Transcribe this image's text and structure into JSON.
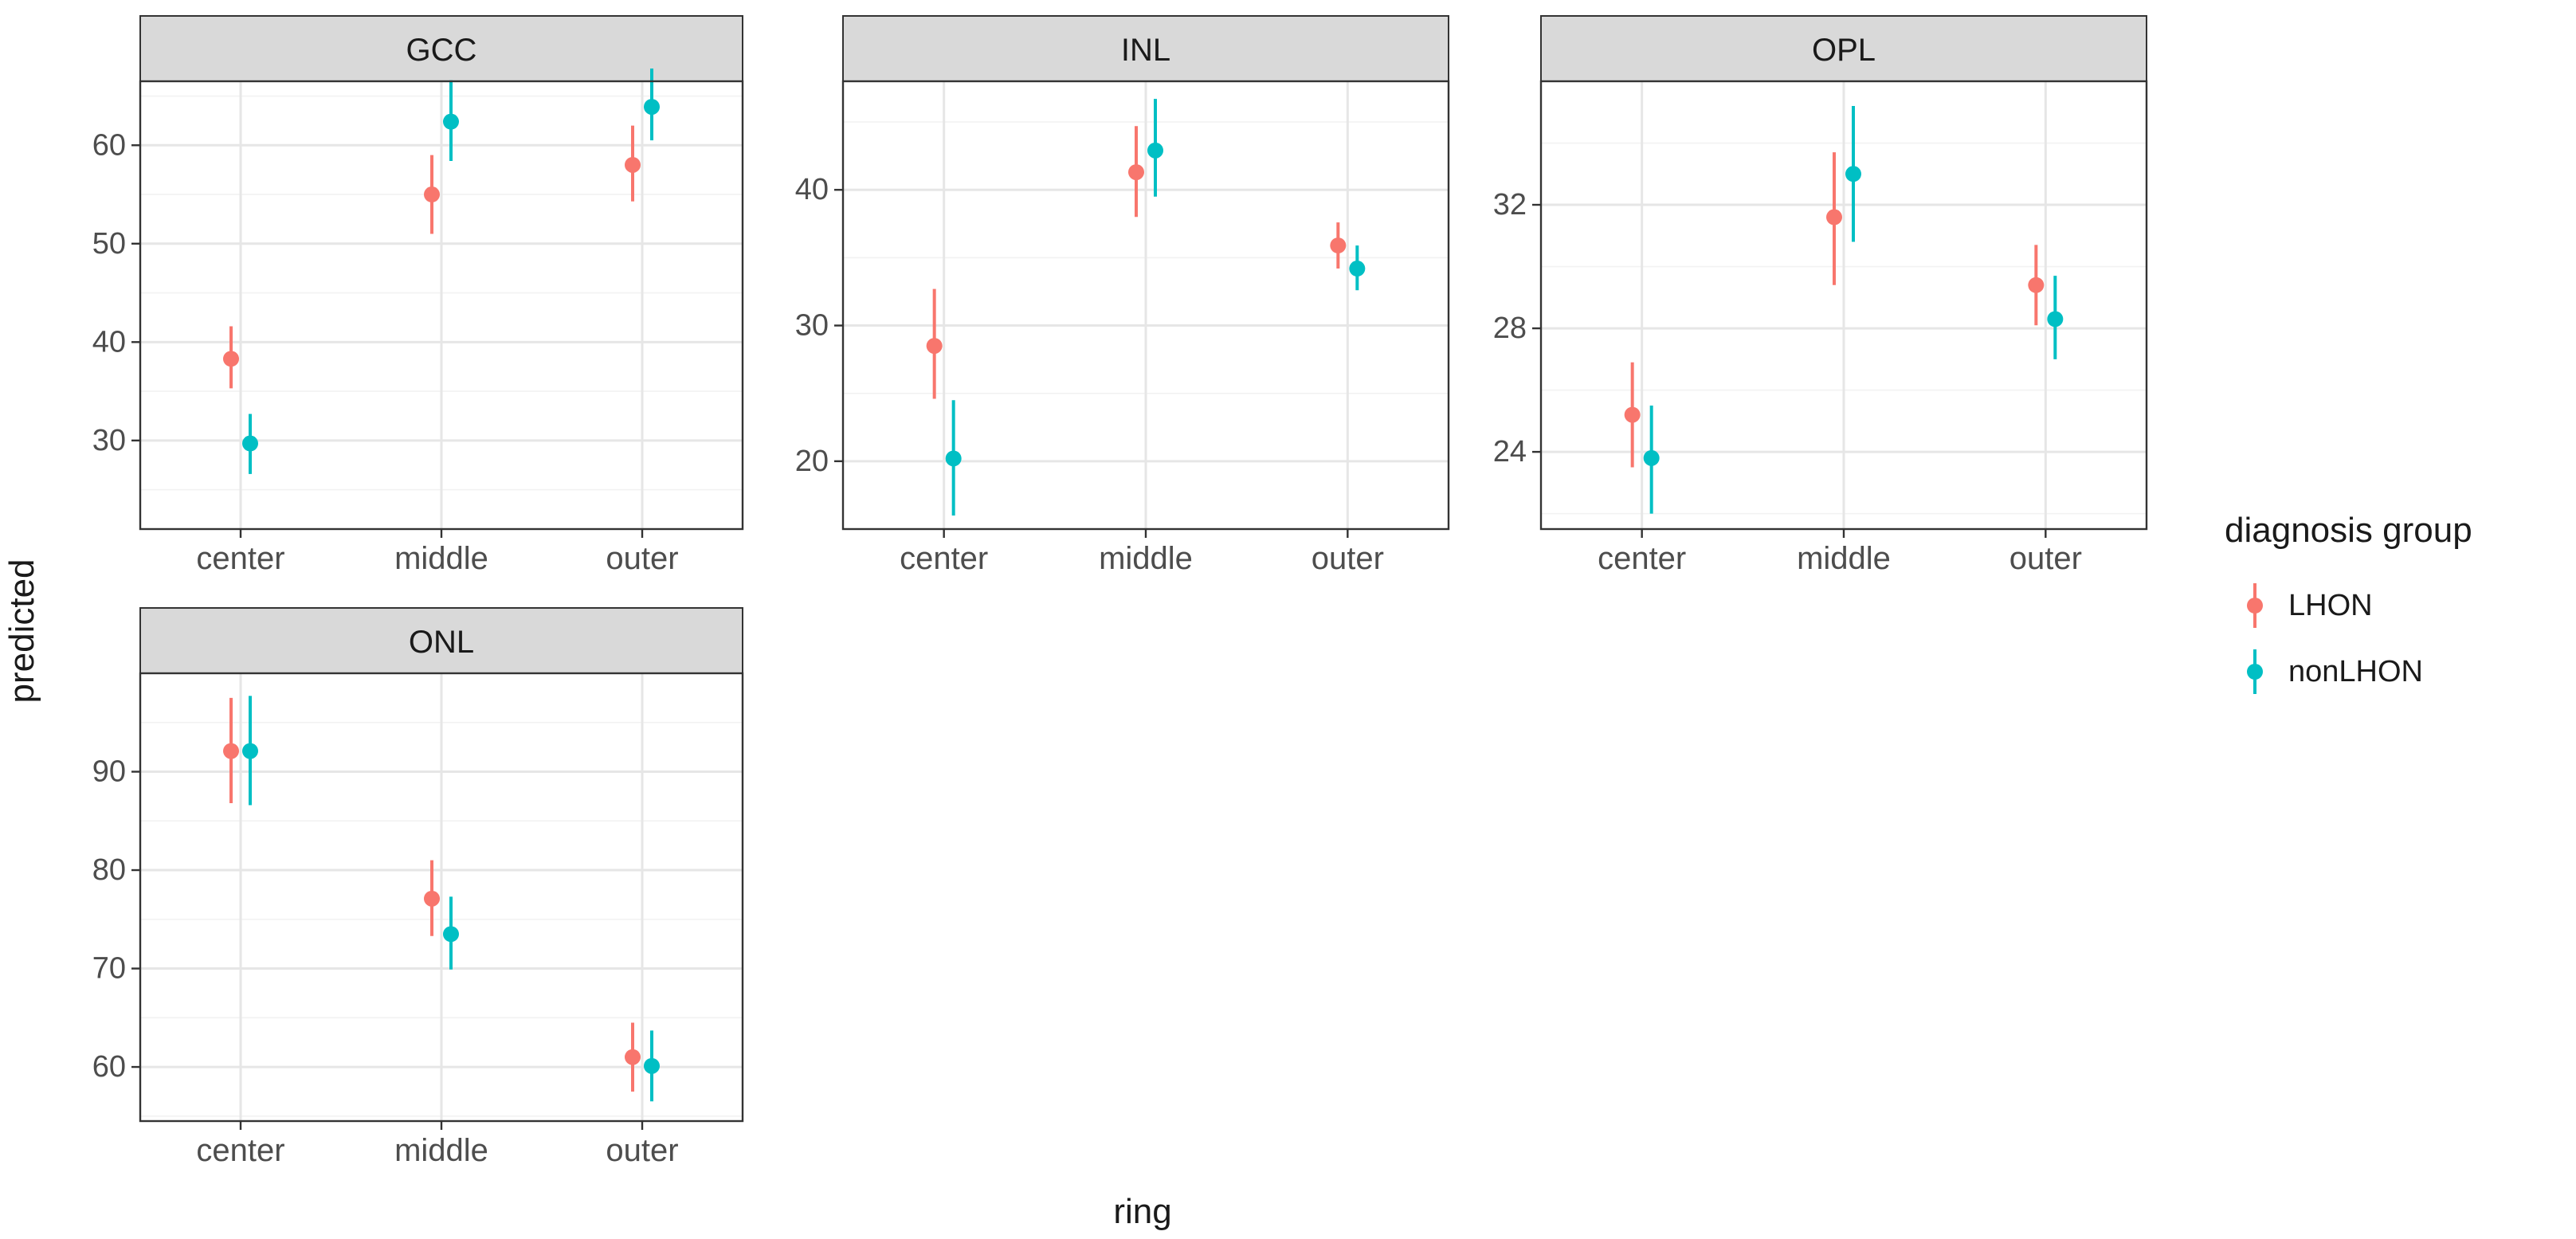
{
  "chart_data": {
    "type": "scatter",
    "subtype": "pointrange",
    "xlabel": "ring",
    "ylabel": "predicted",
    "categories": [
      "center",
      "middle",
      "outer"
    ],
    "legend": {
      "title": "diagnosis group",
      "position": "right",
      "entries": [
        {
          "name": "LHON",
          "color": "#F8766D"
        },
        {
          "name": "nonLHON",
          "color": "#00BFC4"
        }
      ]
    },
    "grid": true,
    "panels": [
      {
        "title": "GCC",
        "ylim": [
          21,
          66.5
        ],
        "yticks": [
          30,
          40,
          50,
          60
        ],
        "series": [
          {
            "name": "LHON",
            "points": [
              {
                "x": "center",
                "y": 38.3,
                "lo": 35.3,
                "hi": 41.6
              },
              {
                "x": "middle",
                "y": 55.0,
                "lo": 51.0,
                "hi": 59.0
              },
              {
                "x": "outer",
                "y": 58.0,
                "lo": 54.3,
                "hi": 62.0
              }
            ]
          },
          {
            "name": "nonLHON",
            "points": [
              {
                "x": "center",
                "y": 29.7,
                "lo": 26.6,
                "hi": 32.7
              },
              {
                "x": "middle",
                "y": 62.4,
                "lo": 58.4,
                "hi": 66.6
              },
              {
                "x": "outer",
                "y": 63.9,
                "lo": 60.5,
                "hi": 67.8
              }
            ]
          }
        ]
      },
      {
        "title": "INL",
        "ylim": [
          15,
          48
        ],
        "yticks": [
          20,
          30,
          40
        ],
        "series": [
          {
            "name": "LHON",
            "points": [
              {
                "x": "center",
                "y": 28.5,
                "lo": 24.6,
                "hi": 32.7
              },
              {
                "x": "middle",
                "y": 41.3,
                "lo": 38.0,
                "hi": 44.7
              },
              {
                "x": "outer",
                "y": 35.9,
                "lo": 34.2,
                "hi": 37.6
              }
            ]
          },
          {
            "name": "nonLHON",
            "points": [
              {
                "x": "center",
                "y": 20.2,
                "lo": 16.0,
                "hi": 24.5
              },
              {
                "x": "middle",
                "y": 42.9,
                "lo": 39.5,
                "hi": 46.7
              },
              {
                "x": "outer",
                "y": 34.2,
                "lo": 32.6,
                "hi": 35.9
              }
            ]
          }
        ]
      },
      {
        "title": "OPL",
        "ylim": [
          21.5,
          36
        ],
        "yticks": [
          24,
          28,
          32
        ],
        "series": [
          {
            "name": "LHON",
            "points": [
              {
                "x": "center",
                "y": 25.2,
                "lo": 23.5,
                "hi": 26.9
              },
              {
                "x": "middle",
                "y": 31.6,
                "lo": 29.4,
                "hi": 33.7
              },
              {
                "x": "outer",
                "y": 29.4,
                "lo": 28.1,
                "hi": 30.7
              }
            ]
          },
          {
            "name": "nonLHON",
            "points": [
              {
                "x": "center",
                "y": 23.8,
                "lo": 22.0,
                "hi": 25.5
              },
              {
                "x": "middle",
                "y": 33.0,
                "lo": 30.8,
                "hi": 35.2
              },
              {
                "x": "outer",
                "y": 28.3,
                "lo": 27.0,
                "hi": 29.7
              }
            ]
          }
        ]
      },
      {
        "title": "ONL",
        "ylim": [
          54.5,
          100
        ],
        "yticks": [
          60,
          70,
          80,
          90
        ],
        "series": [
          {
            "name": "LHON",
            "points": [
              {
                "x": "center",
                "y": 92.1,
                "lo": 86.8,
                "hi": 97.5
              },
              {
                "x": "middle",
                "y": 77.1,
                "lo": 73.3,
                "hi": 81.0
              },
              {
                "x": "outer",
                "y": 61.0,
                "lo": 57.5,
                "hi": 64.5
              }
            ]
          },
          {
            "name": "nonLHON",
            "points": [
              {
                "x": "center",
                "y": 92.1,
                "lo": 86.6,
                "hi": 97.7
              },
              {
                "x": "middle",
                "y": 73.5,
                "lo": 69.9,
                "hi": 77.3
              },
              {
                "x": "outer",
                "y": 60.1,
                "lo": 56.5,
                "hi": 63.7
              }
            ]
          }
        ]
      }
    ]
  }
}
